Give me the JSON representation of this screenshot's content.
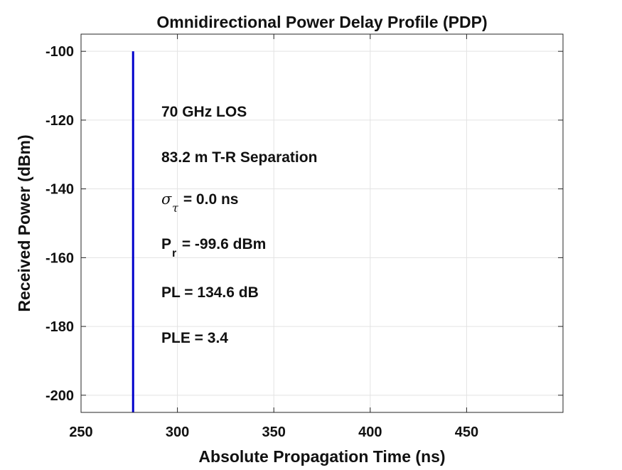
{
  "chart_data": {
    "type": "stem",
    "title": "Omnidirectional Power Delay Profile (PDP)",
    "xlabel": "Absolute Propagation Time (ns)",
    "ylabel": "Received Power (dBm)",
    "xlim": [
      250,
      500
    ],
    "ylim": [
      -205,
      -95
    ],
    "xticks": [
      250,
      300,
      350,
      400,
      450
    ],
    "yticks": [
      -100,
      -120,
      -140,
      -160,
      -180,
      -200
    ],
    "grid": true,
    "series": [
      {
        "color": "#0000cc",
        "points": [
          {
            "x": 277,
            "y": -100
          }
        ]
      }
    ],
    "annotations": {
      "frequency": "70 GHz LOS",
      "separation": "83.2 m T-R Separation",
      "rms_delay": {
        "symbol": "σ",
        "subscript": "τ",
        "text": " = 0.0 ns"
      },
      "received_power": {
        "symbol": "P",
        "subscript": "r",
        "text": " = -99.6 dBm"
      },
      "path_loss": "PL = 134.6 dB",
      "ple": "PLE = 3.4"
    }
  }
}
